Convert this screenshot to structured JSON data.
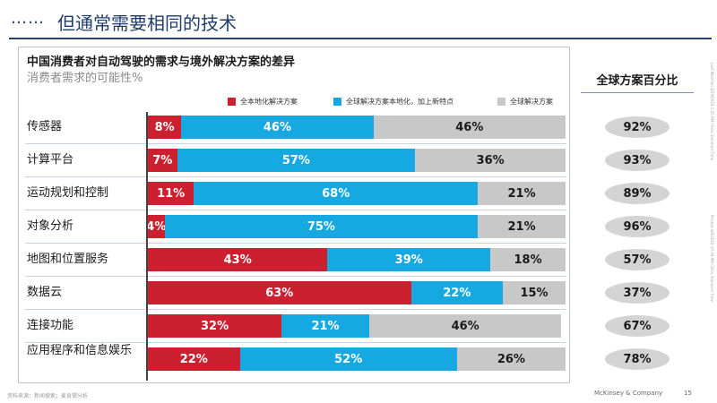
{
  "header": {
    "dots": "……",
    "title": "但通常需要相同的技术"
  },
  "chart_data": {
    "type": "bar",
    "stacked": true,
    "orientation": "horizontal",
    "title": "中国消费者对自动驾驶的需求与境外解决方案的差异",
    "subtitle": "消费者需求的可能性%",
    "categories": [
      "传感器",
      "计算平台",
      "运动规划和控制",
      "对象分析",
      "地图和位置服务",
      "数据云",
      "连接功能",
      "应用程序和信息娱乐"
    ],
    "series": [
      {
        "name": "全本地化解决方案",
        "color": "#cc1f2f",
        "values": [
          8,
          7,
          11,
          4,
          43,
          63,
          32,
          22
        ]
      },
      {
        "name": "全球解决方案本地化，加上新特点",
        "color": "#16a8e0",
        "values": [
          46,
          57,
          68,
          75,
          39,
          22,
          21,
          52
        ]
      },
      {
        "name": "全球解决方案",
        "color": "#c8c8c8",
        "values": [
          46,
          36,
          21,
          21,
          18,
          15,
          46,
          26
        ]
      }
    ],
    "value_format": "%",
    "legend_position": "top"
  },
  "global_share": {
    "header": "全球方案百分比",
    "values": [
      "92%",
      "93%",
      "89%",
      "96%",
      "57%",
      "37%",
      "67%",
      "78%"
    ]
  },
  "footer": {
    "source": "资料来源：新闻搜索；麦肯锡分析",
    "company": "McKinsey & Company",
    "page": "15"
  },
  "side_notes": {
    "left": "Last Modified 4/29/2018 1:45 PM China Standard Time",
    "right": "Printed 4/8/2018 10:39 AM China Standard Time"
  }
}
